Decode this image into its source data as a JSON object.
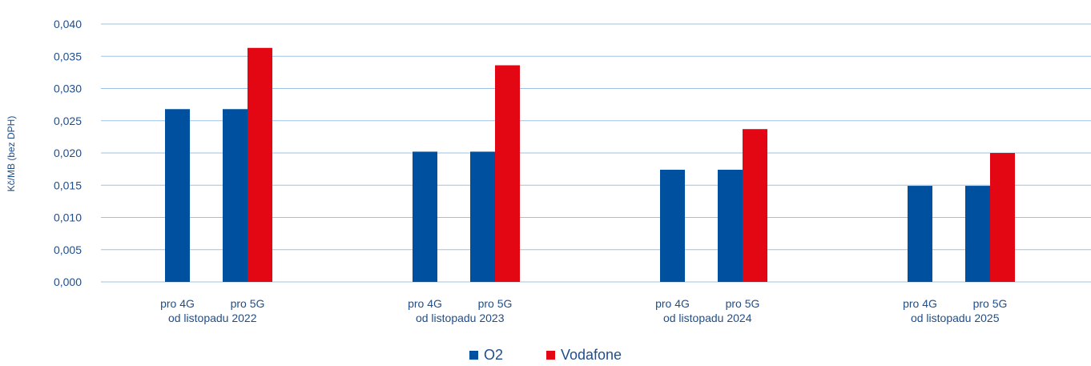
{
  "chart_data": {
    "type": "bar",
    "ylabel": "Kč/MB (bez DPH)",
    "ylim": [
      0,
      0.04
    ],
    "y_ticks": [
      "0,000",
      "0,005",
      "0,010",
      "0,015",
      "0,020",
      "0,025",
      "0,030",
      "0,035",
      "0,040"
    ],
    "grid": true,
    "legend_position": "bottom",
    "groups": [
      {
        "label": "od listopadu 2022",
        "bars": [
          {
            "sublabel": "pro 4G",
            "O2": 0.0268,
            "Vodafone": null
          },
          {
            "sublabel": "pro 5G",
            "O2": 0.0268,
            "Vodafone": 0.0363
          }
        ]
      },
      {
        "label": "od listopadu 2023",
        "bars": [
          {
            "sublabel": "pro 4G",
            "O2": 0.0202,
            "Vodafone": null
          },
          {
            "sublabel": "pro 5G",
            "O2": 0.0202,
            "Vodafone": 0.0336
          }
        ]
      },
      {
        "label": "od listopadu 2024",
        "bars": [
          {
            "sublabel": "pro 4G",
            "O2": 0.0174,
            "Vodafone": null
          },
          {
            "sublabel": "pro 5G",
            "O2": 0.0174,
            "Vodafone": 0.0237
          }
        ]
      },
      {
        "label": "od listopadu 2025",
        "bars": [
          {
            "sublabel": "pro 4G",
            "O2": 0.0149,
            "Vodafone": null
          },
          {
            "sublabel": "pro 5G",
            "O2": 0.0149,
            "Vodafone": 0.02
          }
        ]
      }
    ],
    "series": [
      {
        "name": "O2",
        "color": "#0050a0"
      },
      {
        "name": "Vodafone",
        "color": "#e30613"
      }
    ]
  }
}
